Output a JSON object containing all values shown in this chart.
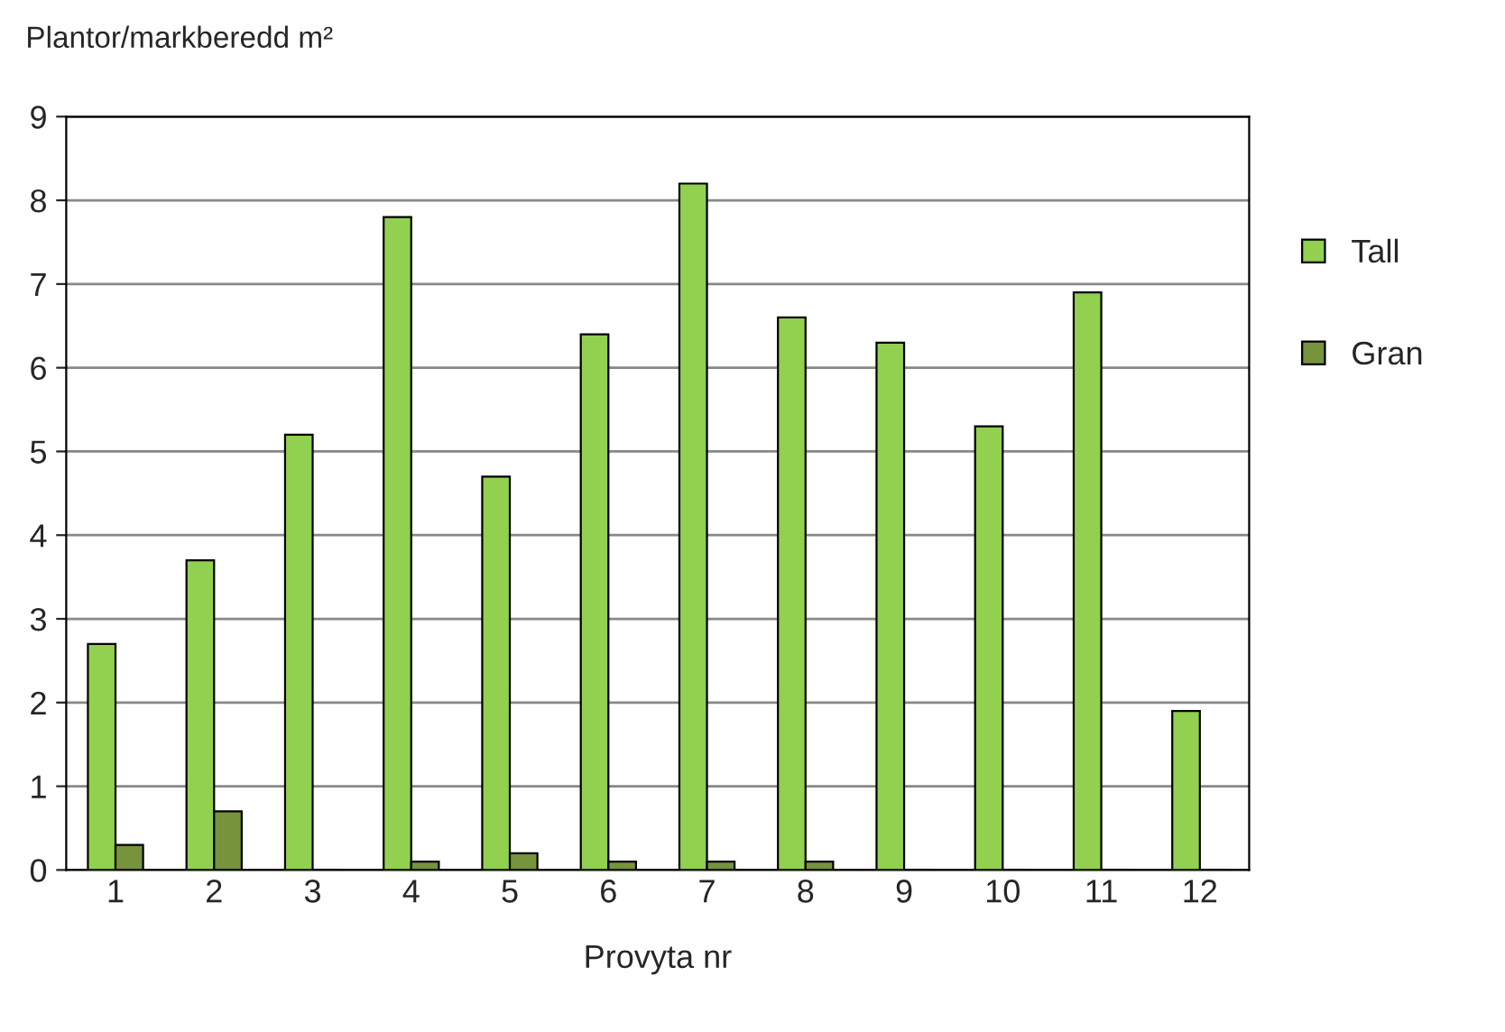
{
  "chart_data": {
    "type": "bar",
    "ylabel": "Plantor/markberedd m²",
    "xlabel": "Provyta nr",
    "categories": [
      "1",
      "2",
      "3",
      "4",
      "5",
      "6",
      "7",
      "8",
      "9",
      "10",
      "11",
      "12"
    ],
    "series": [
      {
        "name": "Tall",
        "color": "#92d050",
        "values": [
          2.7,
          3.7,
          5.2,
          7.8,
          4.7,
          6.4,
          8.2,
          6.6,
          6.3,
          5.3,
          6.9,
          1.9
        ]
      },
      {
        "name": "Gran",
        "color": "#77933c",
        "values": [
          0.3,
          0.7,
          0,
          0.1,
          0.2,
          0.1,
          0.1,
          0.1,
          0,
          0,
          0,
          0
        ]
      }
    ],
    "ylim": [
      0,
      9
    ],
    "yticks": [
      0,
      1,
      2,
      3,
      4,
      5,
      6,
      7,
      8,
      9
    ],
    "grid": "y",
    "legend": "right"
  }
}
